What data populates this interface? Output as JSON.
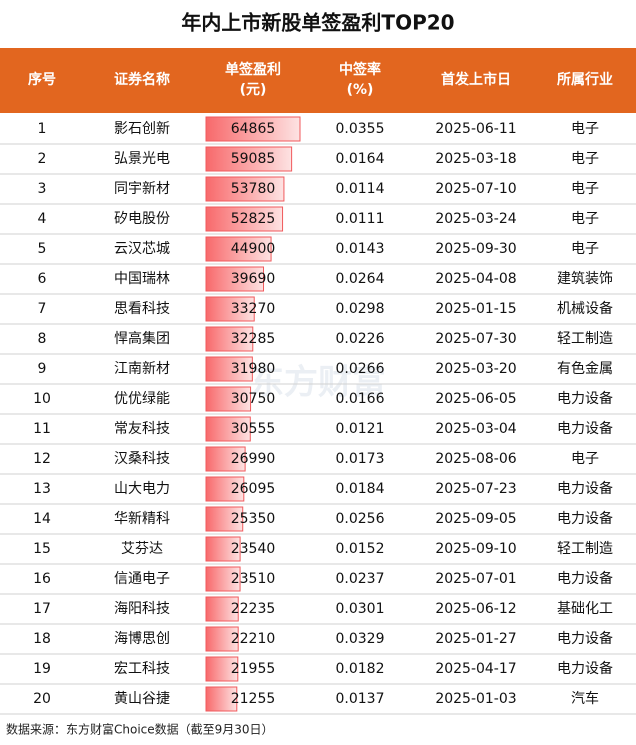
{
  "title": "年内上市新股单签盈利TOP20",
  "header": [
    "序号",
    "证券名称",
    "单签盈利\n(元)",
    "中签率\n(%)",
    "首发上市日",
    "所属行业"
  ],
  "rows": [
    [
      1,
      "影石创新",
      64865,
      0.0355,
      "2025-06-11",
      "电子"
    ],
    [
      2,
      "弘景光电",
      59085,
      0.0164,
      "2025-03-18",
      "电子"
    ],
    [
      3,
      "同宇新材",
      53780,
      0.0114,
      "2025-07-10",
      "电子"
    ],
    [
      4,
      "矽电股份",
      52825,
      0.0111,
      "2025-03-24",
      "电子"
    ],
    [
      5,
      "云汉芯城",
      44900,
      0.0143,
      "2025-09-30",
      "电子"
    ],
    [
      6,
      "中国瑞林",
      39690,
      0.0264,
      "2025-04-08",
      "建筑装饰"
    ],
    [
      7,
      "思看科技",
      33270,
      0.0298,
      "2025-01-15",
      "机械设备"
    ],
    [
      8,
      "悍高集团",
      32285,
      0.0226,
      "2025-07-30",
      "轻工制造"
    ],
    [
      9,
      "江南新材",
      31980,
      0.0266,
      "2025-03-20",
      "有色金属"
    ],
    [
      10,
      "优优绿能",
      30750,
      0.0166,
      "2025-06-05",
      "电力设备"
    ],
    [
      11,
      "常友科技",
      30555,
      0.0121,
      "2025-03-04",
      "电力设备"
    ],
    [
      12,
      "汉桑科技",
      26990,
      0.0173,
      "2025-08-06",
      "电子"
    ],
    [
      13,
      "山大电力",
      26095,
      0.0184,
      "2025-07-23",
      "电力设备"
    ],
    [
      14,
      "华新精科",
      25350,
      0.0256,
      "2025-09-05",
      "电力设备"
    ],
    [
      15,
      "艾芬达",
      23540,
      0.0152,
      "2025-09-10",
      "轻工制造"
    ],
    [
      16,
      "信通电子",
      23510,
      0.0237,
      "2025-07-01",
      "电力设备"
    ],
    [
      17,
      "海阳科技",
      22235,
      0.0301,
      "2025-06-12",
      "基础化工"
    ],
    [
      18,
      "海博思创",
      22210,
      0.0329,
      "2025-01-27",
      "电力设备"
    ],
    [
      19,
      "宏工科技",
      21955,
      0.0182,
      "2025-04-17",
      "电力设备"
    ],
    [
      20,
      "黄山谷捷",
      21255,
      0.0137,
      "2025-01-03",
      "汽车"
    ]
  ],
  "watermark": "东方财富",
  "footer": "数据来源：东方财富Choice数据（截至9月30日）"
}
